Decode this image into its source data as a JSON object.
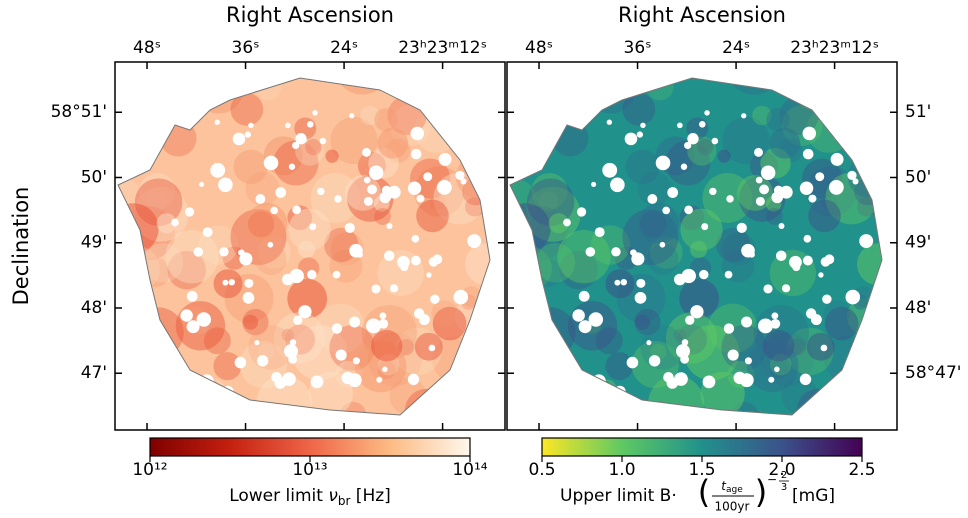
{
  "panels": [
    {
      "xlabel": "Right Ascension",
      "ylabel": "Declination",
      "xlim": [
        51.9,
        4.4
      ],
      "ylim": [
        46.13,
        51.77
      ],
      "xticks": [
        {
          "value": 48,
          "label": "48ˢ"
        },
        {
          "value": 36,
          "label": "36ˢ"
        },
        {
          "value": 24,
          "label": "24ˢ"
        },
        {
          "value": 12,
          "label": "23ʰ23ᵐ12ˢ"
        }
      ],
      "yticks": [
        {
          "value": 51,
          "label": "58°51'"
        },
        {
          "value": 50,
          "label": "50'"
        },
        {
          "value": 49,
          "label": "49'"
        },
        {
          "value": 48,
          "label": "48'"
        },
        {
          "value": 47,
          "label": "47'"
        }
      ],
      "colorbar": {
        "scale": "log",
        "lim": [
          1000000000000,
          100000000000000
        ],
        "ticks": [
          {
            "value": 1000000000000,
            "label": "10¹²"
          },
          {
            "value": 10000000000000,
            "label": "10¹³"
          },
          {
            "value": 100000000000000,
            "label": "10¹⁴"
          }
        ],
        "colormap": [
          "#7f0000",
          "#c4200e",
          "#ef6548",
          "#fdbb84",
          "#fff7ec"
        ],
        "label": {
          "prefix": "Lower limit ",
          "symbol": "ν",
          "sub": "br",
          "suffix": " [Hz]"
        }
      },
      "map_colors": [
        "#fcc39c",
        "#f59a72",
        "#fde0c5",
        "#e8553a"
      ]
    },
    {
      "xlabel": "Right Ascension",
      "xlim": [
        51.9,
        4.4
      ],
      "ylim": [
        46.13,
        51.77
      ],
      "xticks": [
        {
          "value": 48,
          "label": "48ˢ"
        },
        {
          "value": 36,
          "label": "36ˢ"
        },
        {
          "value": 24,
          "label": "24ˢ"
        },
        {
          "value": 12,
          "label": "23ʰ23ᵐ12ˢ"
        }
      ],
      "yticks": [
        {
          "value": 51,
          "label": "51'"
        },
        {
          "value": 50,
          "label": "50'"
        },
        {
          "value": 49,
          "label": "49'"
        },
        {
          "value": 48,
          "label": "48'"
        },
        {
          "value": 47,
          "label": "58°47'"
        }
      ],
      "colorbar": {
        "scale": "linear",
        "lim": [
          0.5,
          2.5
        ],
        "ticks": [
          0.5,
          {
            "value": 1,
            "label": "1.0"
          },
          1.5,
          {
            "value": 2,
            "label": "2.0"
          },
          2.5
        ],
        "colormap": [
          "#fde725",
          "#5ec962",
          "#21918c",
          "#3b528b",
          "#440154"
        ],
        "label": {
          "prefix": "Upper limit B·",
          "num": "t",
          "num_sub": "age",
          "den": "100yr",
          "exp_sign": "−",
          "exp_num": "2",
          "exp_den": "3",
          "suffix": " [mG]"
        }
      },
      "map_colors": [
        "#21918c",
        "#2c728e",
        "#5ec962",
        "#3b528b"
      ]
    }
  ]
}
